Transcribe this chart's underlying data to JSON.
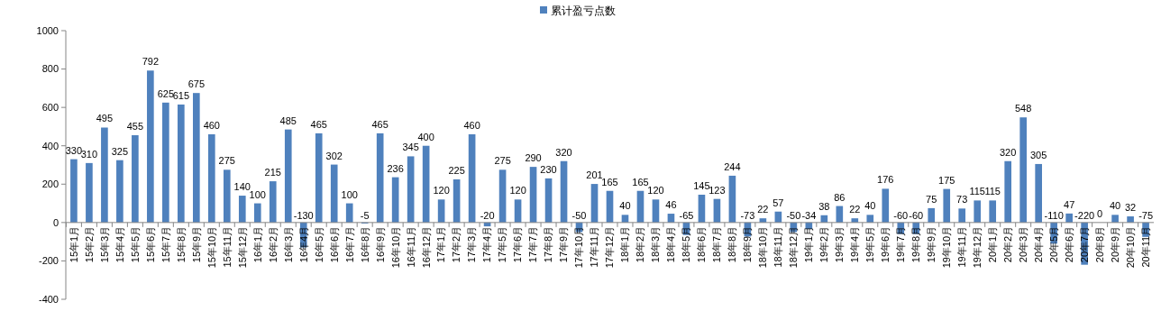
{
  "chart_data": {
    "type": "bar",
    "categories": [
      "15年1月",
      "15年2月",
      "15年3月",
      "15年4月",
      "15年5月",
      "15年6月",
      "15年7月",
      "15年8月",
      "15年9月",
      "15年10月",
      "15年11月",
      "15年12月",
      "16年1月",
      "16年2月",
      "16年3月",
      "16年4月",
      "16年5月",
      "16年6月",
      "16年7月",
      "16年8月",
      "16年9月",
      "16年10月",
      "16年11月",
      "16年12月",
      "17年1月",
      "17年2月",
      "17年3月",
      "17年4月",
      "17年5月",
      "17年6月",
      "17年7月",
      "17年8月",
      "17年9月",
      "17年10月",
      "17年11月",
      "17年12月",
      "18年1月",
      "18年2月",
      "18年3月",
      "18年4月",
      "18年5月",
      "18年6月",
      "18年7月",
      "18年8月",
      "18年9月",
      "18年10月",
      "18年11月",
      "18年12月",
      "19年1月",
      "19年2月",
      "19年3月",
      "19年4月",
      "19年5月",
      "19年6月",
      "19年7月",
      "19年8月",
      "19年9月",
      "19年10月",
      "19年11月",
      "19年12月",
      "20年1月",
      "20年2月",
      "20年3月",
      "20年4月",
      "20年5月",
      "20年6月",
      "20年7月",
      "20年8月",
      "20年9月",
      "20年10月",
      "20年11月"
    ],
    "series": [
      {
        "name": "累计盈亏点数",
        "color": "#4f81bd",
        "values": [
          330,
          310,
          495,
          325,
          455,
          792,
          625,
          615,
          675,
          460,
          275,
          140,
          100,
          215,
          485,
          -130,
          465,
          302,
          100,
          -5,
          465,
          236,
          345,
          400,
          120,
          225,
          460,
          -20,
          275,
          120,
          290,
          230,
          320,
          -50,
          201,
          165,
          40,
          165,
          120,
          46,
          -65,
          145,
          123,
          244,
          -73,
          22,
          57,
          -50,
          -34,
          38,
          86,
          22,
          40,
          176,
          -60,
          -60,
          75,
          175,
          73,
          115,
          115,
          320,
          548,
          305,
          -110,
          47,
          -220,
          0,
          40,
          32,
          -75
        ]
      }
    ],
    "ylim": [
      -400,
      1000
    ],
    "yticks": [
      -400,
      -200,
      0,
      200,
      400,
      600,
      800,
      1000
    ],
    "data_labels": true,
    "legend": "top"
  }
}
